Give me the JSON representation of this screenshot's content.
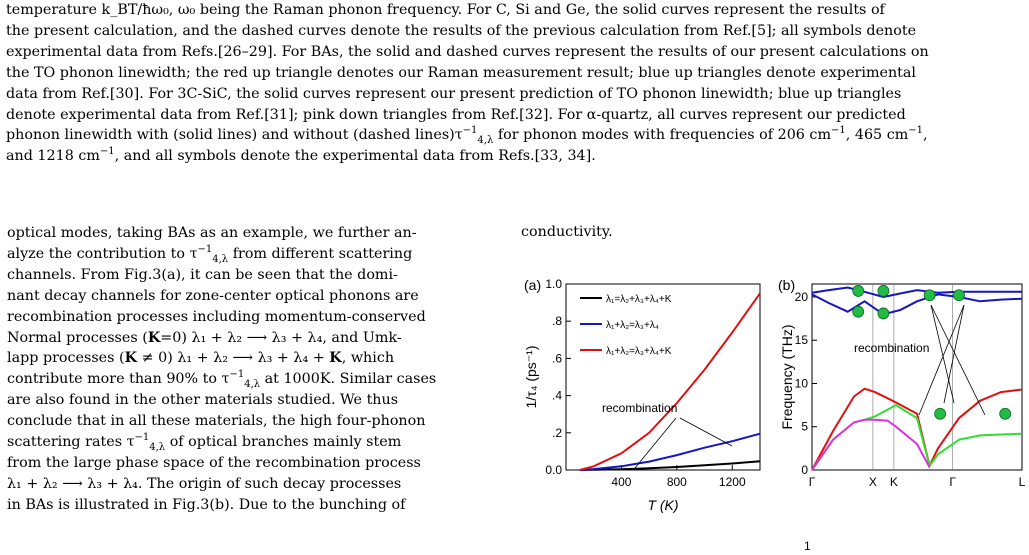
{
  "caption": {
    "line1": "temperature k_BT/ħω₀, ω₀ being the Raman phonon frequency. For C, Si and Ge, the solid curves represent the results of",
    "line2": "the present calculation, and the dashed curves denote the results of the previous calculation from Ref.[5]; all symbols denote",
    "line3": "experimental data from Refs.[26–29]. For BAs, the solid and dashed curves represent the results of our present calculations on",
    "line4": "the TO phonon linewidth; the red up triangle denotes our Raman measurement result; blue up triangles denote experimental",
    "line5": "data from Ref.[30]. For 3C-SiC, the solid curves represent our present prediction of TO phonon linewidth; blue up triangles",
    "line6": "denote experimental data from Ref.[31]; pink down triangles from Ref.[32]. For α-quartz, all curves represent our predicted",
    "line7a": "phonon linewidth with (solid lines) and without (dashed lines)τ",
    "line7b": "for phonon modes with frequencies of 206 cm",
    "line7c": ", 465 cm",
    "line7d": ",",
    "line8a": "and 1218 cm",
    "line8b": ", and all symbols denote the experimental data from Refs.[33, 34].",
    "sup_inv": "−1",
    "sub_lam": "4,λ"
  },
  "left_column": {
    "l1": "optical modes, taking BAs as an example, we further an-",
    "l2a": "alyze the contribution to τ",
    "l2b": "from different scattering",
    "l3": "channels. From Fig.3(a), it can be seen that the domi-",
    "l4": "nant decay channels for zone-center optical phonons are",
    "l5": "recombination processes including momentum-conserved",
    "l6a": "Normal processes (",
    "l6b": "K",
    "l6c": "=0) λ₁ + λ₂ ⟶ λ₃ + λ₄, and Umk-",
    "l7a": "lapp processes (",
    "l7b": "K",
    "l7c": " ≠ 0) λ₁ + λ₂ ⟶ λ₃ + λ₄ + ",
    "l7d": "K",
    "l7e": ", which",
    "l8a": "contribute more than 90% to τ",
    "l8b": "at 1000K. Similar cases",
    "l9": "are also found in the other materials studied. We thus",
    "l10": "conclude that in all these materials, the high four-phonon",
    "l11a": "scattering rates τ",
    "l11b": "of optical branches mainly stem",
    "l12": "from the large phase space of the recombination process",
    "l13": "λ₁ + λ₂ ⟶ λ₃ + λ₄. The origin of such decay processes",
    "l14": "in BAs is illustrated in Fig.3(b). Due to the bunching of"
  },
  "right_column": {
    "text": "conductivity.",
    "bottom_fragment": "1"
  },
  "figure": {
    "panel_a": {
      "label": "(a)",
      "ylabel": "1/τ₄ (ps⁻¹)",
      "xlabel": "T (K)",
      "x_ticks": [
        "400",
        "800",
        "1200"
      ],
      "y_ticks": [
        "0.0",
        ".2",
        ".4",
        ".6",
        ".8",
        "1.0"
      ],
      "annotation": "recombination",
      "legend": [
        {
          "label": "λ₁=λ₂+λ₃+λ₄+K",
          "color": "#000000"
        },
        {
          "label": "λ₁+λ₂=λ₃+λ₄",
          "color": "#1414c8"
        },
        {
          "label": "λ₁+λ₂=λ₃+λ₄+K",
          "color": "#e01010"
        }
      ]
    },
    "panel_b": {
      "label": "(b)",
      "ylabel": "Frequency (THz)",
      "x_ticks": [
        "Γ",
        "X",
        "K",
        "Γ",
        "L"
      ],
      "y_ticks": [
        "0",
        "5",
        "10",
        "15",
        "20"
      ],
      "annotation": "recombination"
    },
    "colors": {
      "black": "#000000",
      "blue": "#1414c8",
      "red": "#e01010",
      "green": "#33dd33",
      "magenta": "#dd33dd",
      "dot": "#22bb44"
    }
  },
  "chart_data": [
    {
      "type": "line",
      "title": "",
      "xlabel": "T (K)",
      "ylabel": "1/τ₄ (ps⁻¹)",
      "xlim": [
        0,
        1400
      ],
      "ylim": [
        0,
        1.0
      ],
      "series": [
        {
          "name": "λ₁=λ₂+λ₃+λ₄+K",
          "x": [
            100,
            200,
            400,
            600,
            800,
            1000,
            1200,
            1400
          ],
          "y": [
            0.0,
            0.001,
            0.004,
            0.009,
            0.016,
            0.025,
            0.035,
            0.047
          ]
        },
        {
          "name": "λ₁+λ₂=λ₃+λ₄",
          "x": [
            100,
            200,
            400,
            600,
            800,
            1000,
            1200,
            1400
          ],
          "y": [
            0.0,
            0.005,
            0.02,
            0.045,
            0.08,
            0.12,
            0.155,
            0.195
          ]
        },
        {
          "name": "λ₁+λ₂=λ₃+λ₄+K",
          "x": [
            100,
            200,
            400,
            600,
            800,
            1000,
            1200,
            1400
          ],
          "y": [
            0.0,
            0.02,
            0.09,
            0.2,
            0.36,
            0.54,
            0.74,
            0.95
          ]
        }
      ]
    },
    {
      "type": "line",
      "title": "",
      "xlabel": "",
      "ylabel": "Frequency (THz)",
      "ylim": [
        0,
        21.5
      ],
      "categories": [
        "Γ",
        "X",
        "K",
        "Γ",
        "L"
      ],
      "series": [
        {
          "name": "",
          "x": [
            0,
            0.08,
            0.17,
            0.25,
            0.34,
            0.42,
            0.5,
            0.6,
            0.7,
            0.8,
            0.9,
            1.0
          ],
          "y": [
            20.5,
            20.8,
            21.1,
            20.6,
            20.0,
            20.4,
            20.8,
            20.5,
            20.6,
            20.6,
            20.6,
            20.6
          ]
        },
        {
          "name": "",
          "x": [
            0,
            0.08,
            0.17,
            0.25,
            0.34,
            0.42,
            0.5,
            0.6,
            0.7,
            0.8,
            0.9,
            1.0
          ],
          "y": [
            20.3,
            19.3,
            18.3,
            19.5,
            18.0,
            18.5,
            19.5,
            20.3,
            20.0,
            19.5,
            19.7,
            19.8
          ]
        },
        {
          "name": "",
          "x": [
            0,
            0.1,
            0.2,
            0.25,
            0.3,
            0.4,
            0.5,
            0.56,
            0.6,
            0.7,
            0.8,
            0.9,
            1.0
          ],
          "y": [
            0,
            4.5,
            8.5,
            9.4,
            9.0,
            7.8,
            6.5,
            0.5,
            2.5,
            6.0,
            8.0,
            9.0,
            9.3
          ]
        },
        {
          "name": "",
          "x": [
            0,
            0.1,
            0.2,
            0.25,
            0.3,
            0.4,
            0.5,
            0.56,
            0.6,
            0.7,
            0.8,
            0.9,
            1.0
          ],
          "y": [
            0,
            3.5,
            5.5,
            5.8,
            6.2,
            7.5,
            6.0,
            0.5,
            1.8,
            3.5,
            4.0,
            4.1,
            4.2
          ]
        },
        {
          "name": "",
          "x": [
            0,
            0.1,
            0.2,
            0.25,
            0.3,
            0.36,
            0.4,
            0.5,
            0.56
          ],
          "y": [
            0,
            3.5,
            5.5,
            5.8,
            5.8,
            5.7,
            5.0,
            3.0,
            0.3
          ]
        }
      ]
    }
  ]
}
